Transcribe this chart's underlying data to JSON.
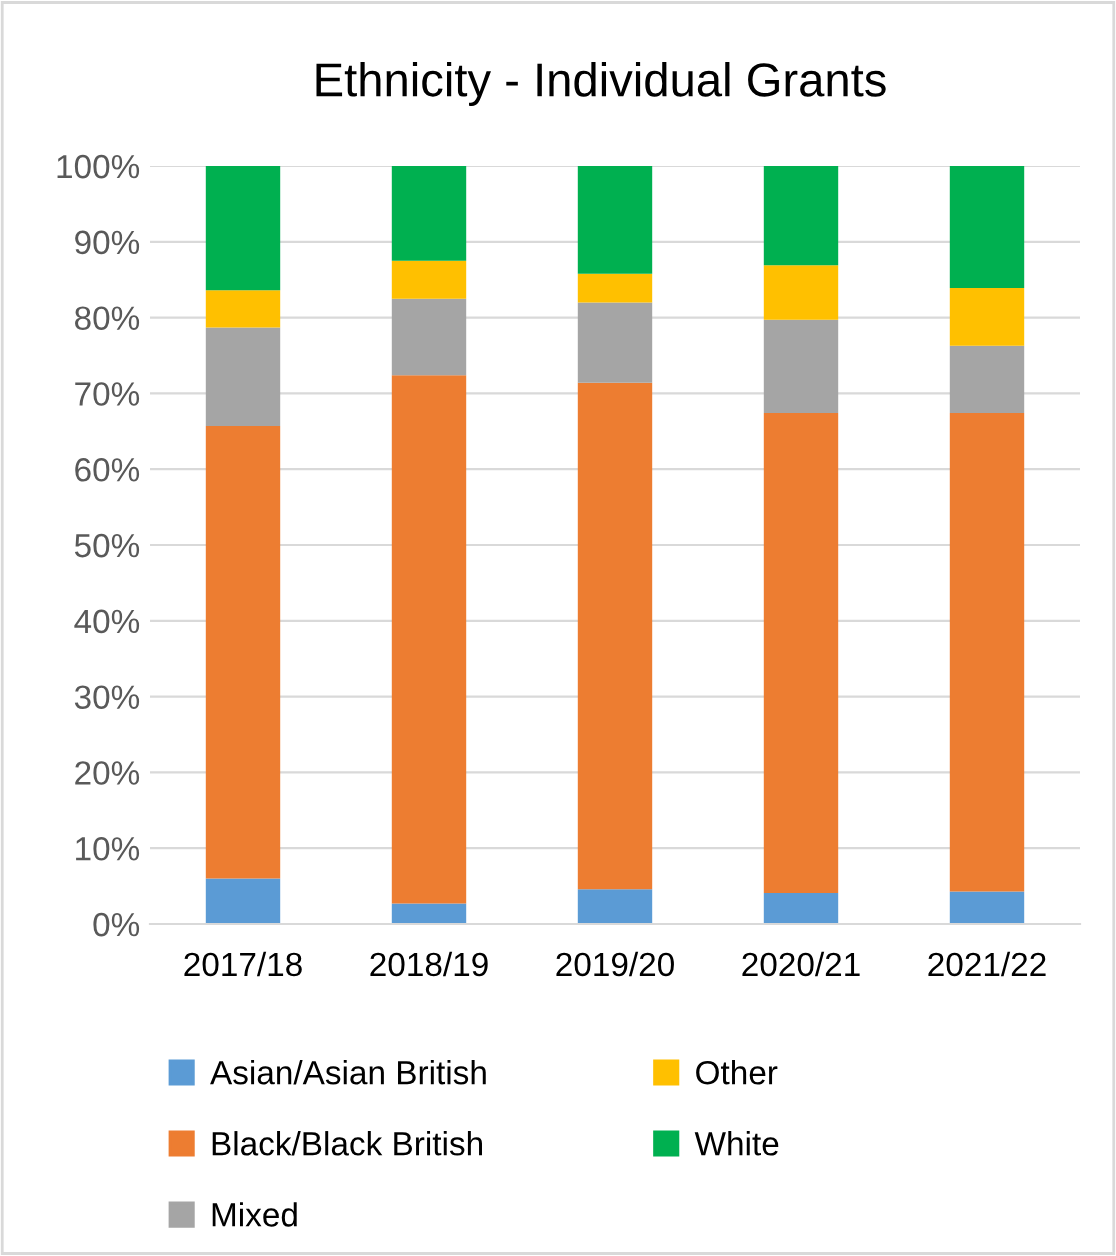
{
  "chart_data": {
    "type": "bar",
    "title": "Ethnicity - Individual Grants",
    "stacked": true,
    "categories": [
      "2017/18",
      "2018/19",
      "2019/20",
      "2020/21",
      "2021/22"
    ],
    "series": [
      {
        "name": "Asian/Asian British",
        "color": "#5b9bd5",
        "values": [
          6.0,
          2.7,
          4.6,
          4.1,
          4.3
        ]
      },
      {
        "name": "Black/Black British",
        "color": "#ed7d31",
        "values": [
          59.7,
          69.7,
          66.8,
          63.3,
          63.1
        ]
      },
      {
        "name": "Mixed",
        "color": "#a5a5a5",
        "values": [
          13.0,
          10.1,
          10.6,
          12.3,
          8.9
        ]
      },
      {
        "name": "Other",
        "color": "#ffc000",
        "values": [
          4.9,
          5.0,
          3.8,
          7.2,
          7.6
        ]
      },
      {
        "name": "White",
        "color": "#00b050",
        "values": [
          16.4,
          12.5,
          14.2,
          13.1,
          16.1
        ]
      }
    ],
    "ylim": [
      0,
      100
    ],
    "yticks": [
      {
        "value": 0,
        "label": "0%"
      },
      {
        "value": 10,
        "label": "10%"
      },
      {
        "value": 20,
        "label": "20%"
      },
      {
        "value": 30,
        "label": "30%"
      },
      {
        "value": 40,
        "label": "40%"
      },
      {
        "value": 50,
        "label": "50%"
      },
      {
        "value": 60,
        "label": "60%"
      },
      {
        "value": 70,
        "label": "70%"
      },
      {
        "value": 80,
        "label": "80%"
      },
      {
        "value": 90,
        "label": "90%"
      },
      {
        "value": 100,
        "label": "100%"
      }
    ],
    "grid": "y",
    "legend": "bottom"
  }
}
